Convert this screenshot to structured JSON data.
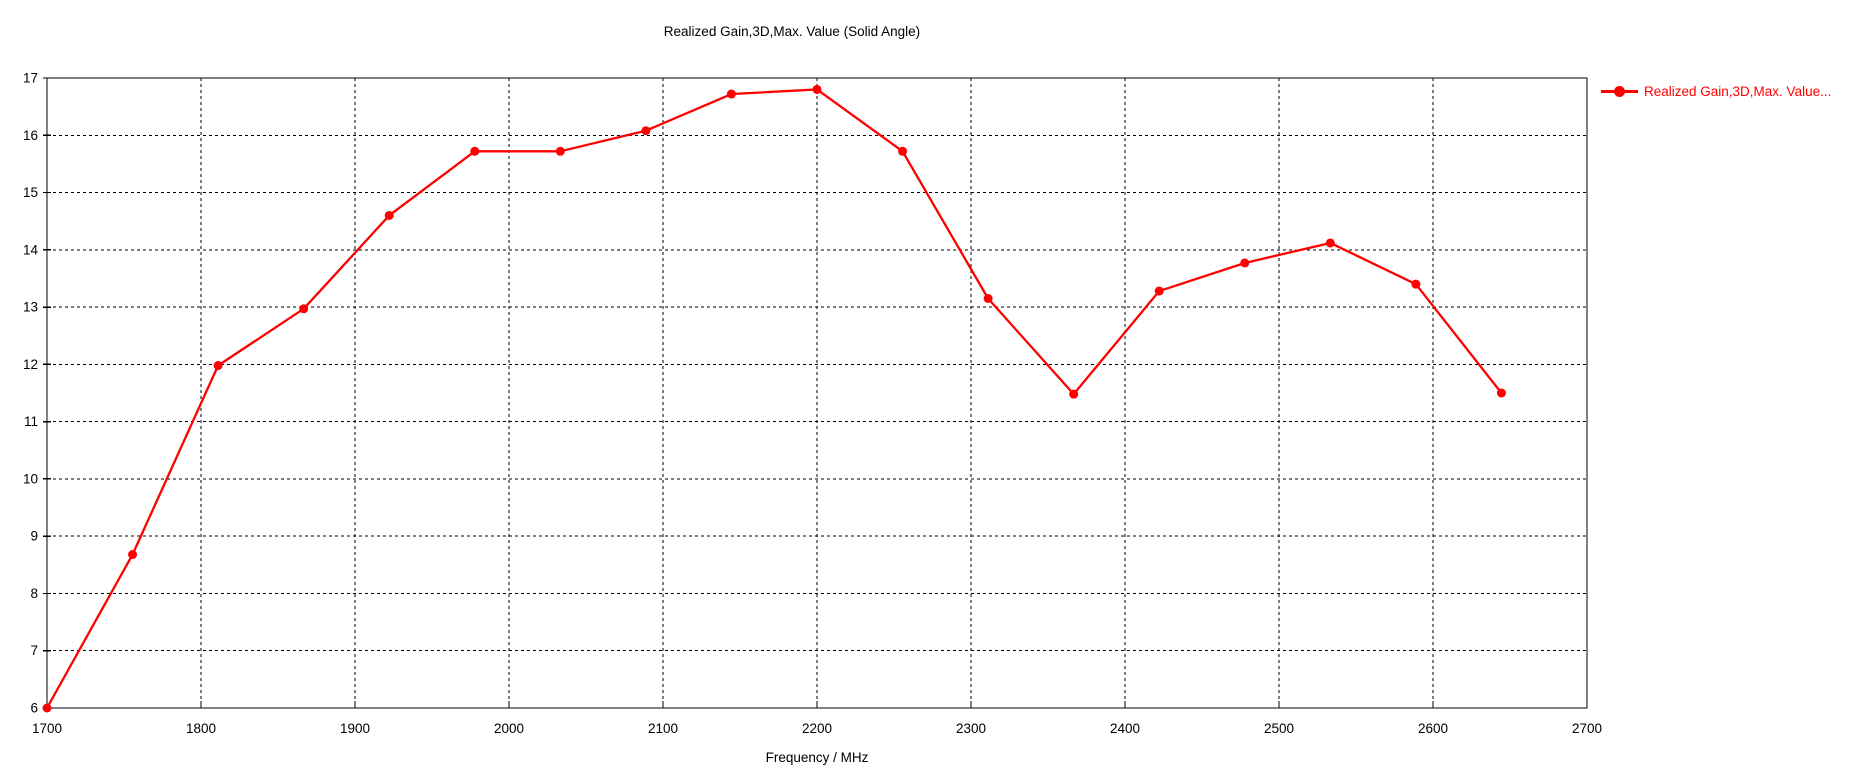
{
  "chart_data": {
    "type": "line",
    "title": "Realized Gain,3D,Max. Value (Solid Angle)",
    "xlabel": "Frequency / MHz",
    "ylabel": "",
    "xlim": [
      1700,
      2700
    ],
    "ylim": [
      6,
      17
    ],
    "xticks": [
      1700,
      1800,
      1900,
      2000,
      2100,
      2200,
      2300,
      2400,
      2500,
      2600,
      2700
    ],
    "yticks": [
      6,
      7,
      8,
      9,
      10,
      11,
      12,
      13,
      14,
      15,
      16,
      17
    ],
    "grid": "dashed-black",
    "legend_position": "top-right",
    "series": [
      {
        "name": "Realized Gain,3D,Max. Value (Solid Angle)",
        "legend_label": "Realized Gain,3D,Max. Value...",
        "color": "#ff0000",
        "marker": "filled-circle",
        "x": [
          1700,
          1755.56,
          1811.11,
          1866.67,
          1922.22,
          1977.78,
          2033.33,
          2088.89,
          2144.44,
          2200,
          2255.56,
          2311.11,
          2366.67,
          2422.22,
          2477.78,
          2533.33,
          2588.89,
          2644.44
        ],
        "y": [
          6.0,
          8.68,
          11.98,
          12.97,
          14.6,
          15.72,
          15.72,
          16.08,
          16.72,
          16.8,
          15.72,
          13.15,
          11.48,
          13.28,
          13.77,
          14.12,
          13.4,
          11.5
        ]
      }
    ]
  },
  "colors": {
    "background": "#ffffff",
    "axis": "#000000",
    "grid": "#000000",
    "text": "#000000",
    "series": "#ff0000"
  }
}
